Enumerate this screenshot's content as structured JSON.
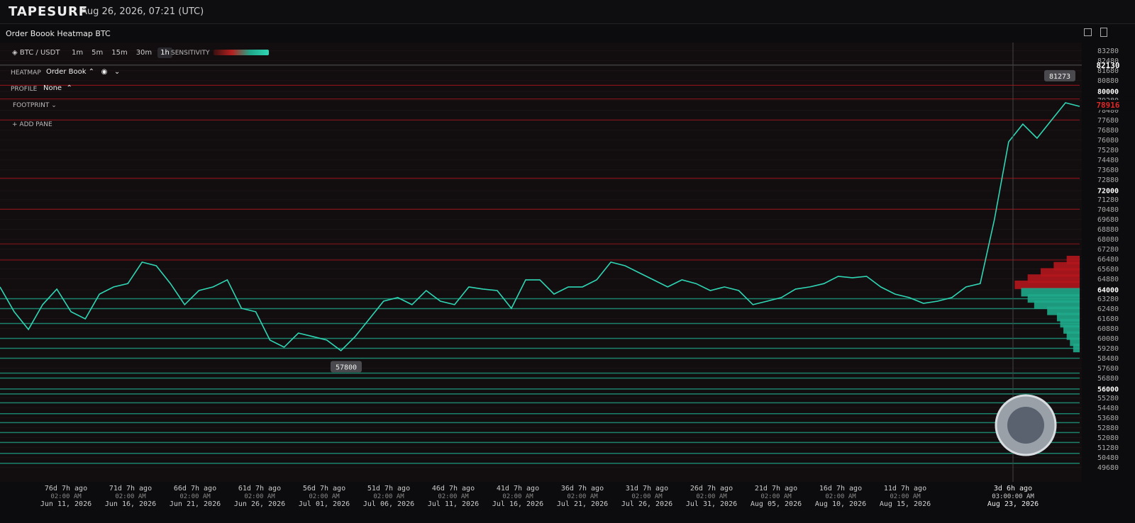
{
  "header": {
    "logo": "TAPESURF",
    "datetime": "Aug 26, 2026, 07:21 (UTC)"
  },
  "panel": {
    "title": "Order Boook Heatmap BTC"
  },
  "toolbar": {
    "pair": "BTC / USDT",
    "timeframes": [
      "1m",
      "5m",
      "15m",
      "30m",
      "1h"
    ],
    "active_timeframe": "1h",
    "sensitivity_label": "SENSITIVITY"
  },
  "layers": {
    "heatmap_label": "HEATMAP",
    "heatmap_value": "Order Book",
    "profile_label": "PROFILE",
    "profile_value": "None",
    "footprint_label": "FOOTPRINT",
    "add_pane": "ADD PANE"
  },
  "chart_data": {
    "type": "line",
    "color": "#2fd6b4",
    "values": [
      64230,
      62230,
      60800,
      62800,
      64060,
      62230,
      61650,
      63650,
      64230,
      64500,
      66230,
      65940,
      64500,
      62800,
      63940,
      64230,
      64800,
      62500,
      62230,
      59940,
      59370,
      60510,
      60230,
      59940,
      59090,
      60230,
      61650,
      63080,
      63370,
      62800,
      63940,
      63080,
      62800,
      64230,
      64060,
      63940,
      62500,
      64800,
      64800,
      63650,
      64230,
      64230,
      64800,
      66230,
      65940,
      65370,
      64800,
      64230,
      64800,
      64500,
      63940,
      64230,
      63940,
      62800,
      63080,
      63370,
      64060,
      64230,
      64500,
      65090,
      64970,
      65090,
      64230,
      63650,
      63370,
      62910,
      63080,
      63370,
      64230,
      64500,
      69660,
      75940,
      77370,
      76230,
      77660,
      79090,
      78800
    ],
    "ylim": [
      48500,
      83950
    ],
    "yticks": [
      83280,
      82480,
      81680,
      80880,
      80000,
      79280,
      78480,
      77680,
      76880,
      76080,
      75280,
      74480,
      73680,
      72880,
      72000,
      71280,
      70480,
      69680,
      68880,
      68080,
      67280,
      66480,
      65680,
      64880,
      64000,
      63280,
      62480,
      61680,
      60880,
      60080,
      59280,
      58480,
      57680,
      56880,
      56000,
      55280,
      54480,
      53680,
      52880,
      52080,
      51280,
      50480,
      49680
    ],
    "bid_levels": [
      63280,
      62480,
      61280,
      60080,
      59280,
      58480,
      57280,
      56880,
      56000,
      55600,
      54880,
      54000,
      53280,
      52480,
      51680,
      50800,
      50000
    ],
    "ask_levels": [
      80500,
      79400,
      77700,
      73000,
      70500,
      67700,
      66400
    ],
    "bid_color": "#1fa88a",
    "ask_color": "#b3161d",
    "profile": {
      "xlim": [
        0,
        120
      ],
      "ask_prices": [
        66400,
        65900,
        65400,
        64900,
        64400
      ],
      "ask_sizes": [
        20,
        40,
        60,
        80,
        100
      ],
      "bid_prices": [
        63800,
        63300,
        62800,
        62300,
        61800,
        61300,
        60800,
        60300,
        59800,
        59300
      ],
      "bid_sizes": [
        90,
        80,
        70,
        50,
        35,
        30,
        25,
        20,
        15,
        10
      ]
    },
    "markers": {
      "high": 81273,
      "last": 82130,
      "current": 78916,
      "low": 57800
    },
    "time_labels": [
      {
        "ago": "76d 7h ago",
        "time": "02:00 AM",
        "date": "Jun 11, 2026"
      },
      {
        "ago": "71d 7h ago",
        "time": "02:00 AM",
        "date": "Jun 16, 2026"
      },
      {
        "ago": "66d 7h ago",
        "time": "02:00 AM",
        "date": "Jun 21, 2026"
      },
      {
        "ago": "61d 7h ago",
        "time": "02:00 AM",
        "date": "Jun 26, 2026"
      },
      {
        "ago": "56d 7h ago",
        "time": "02:00 AM",
        "date": "Jul 01, 2026"
      },
      {
        "ago": "51d 7h ago",
        "time": "02:00 AM",
        "date": "Jul 06, 2026"
      },
      {
        "ago": "46d 7h ago",
        "time": "02:00 AM",
        "date": "Jul 11, 2026"
      },
      {
        "ago": "41d 7h ago",
        "time": "02:00 AM",
        "date": "Jul 16, 2026"
      },
      {
        "ago": "36d 7h ago",
        "time": "02:00 AM",
        "date": "Jul 21, 2026"
      },
      {
        "ago": "31d 7h ago",
        "time": "02:00 AM",
        "date": "Jul 26, 2026"
      },
      {
        "ago": "26d 7h ago",
        "time": "02:00 AM",
        "date": "Jul 31, 2026"
      },
      {
        "ago": "21d 7h ago",
        "time": "02:00 AM",
        "date": "Aug 05, 2026"
      },
      {
        "ago": "16d 7h ago",
        "time": "02:00 AM",
        "date": "Aug 10, 2026"
      },
      {
        "ago": "11d 7h ago",
        "time": "02:00 AM",
        "date": "Aug 15, 2026"
      }
    ],
    "cursor_time": {
      "ago": "3d 6h ago",
      "time": "03:00:00 AM",
      "date": "Aug 23, 2026"
    }
  }
}
